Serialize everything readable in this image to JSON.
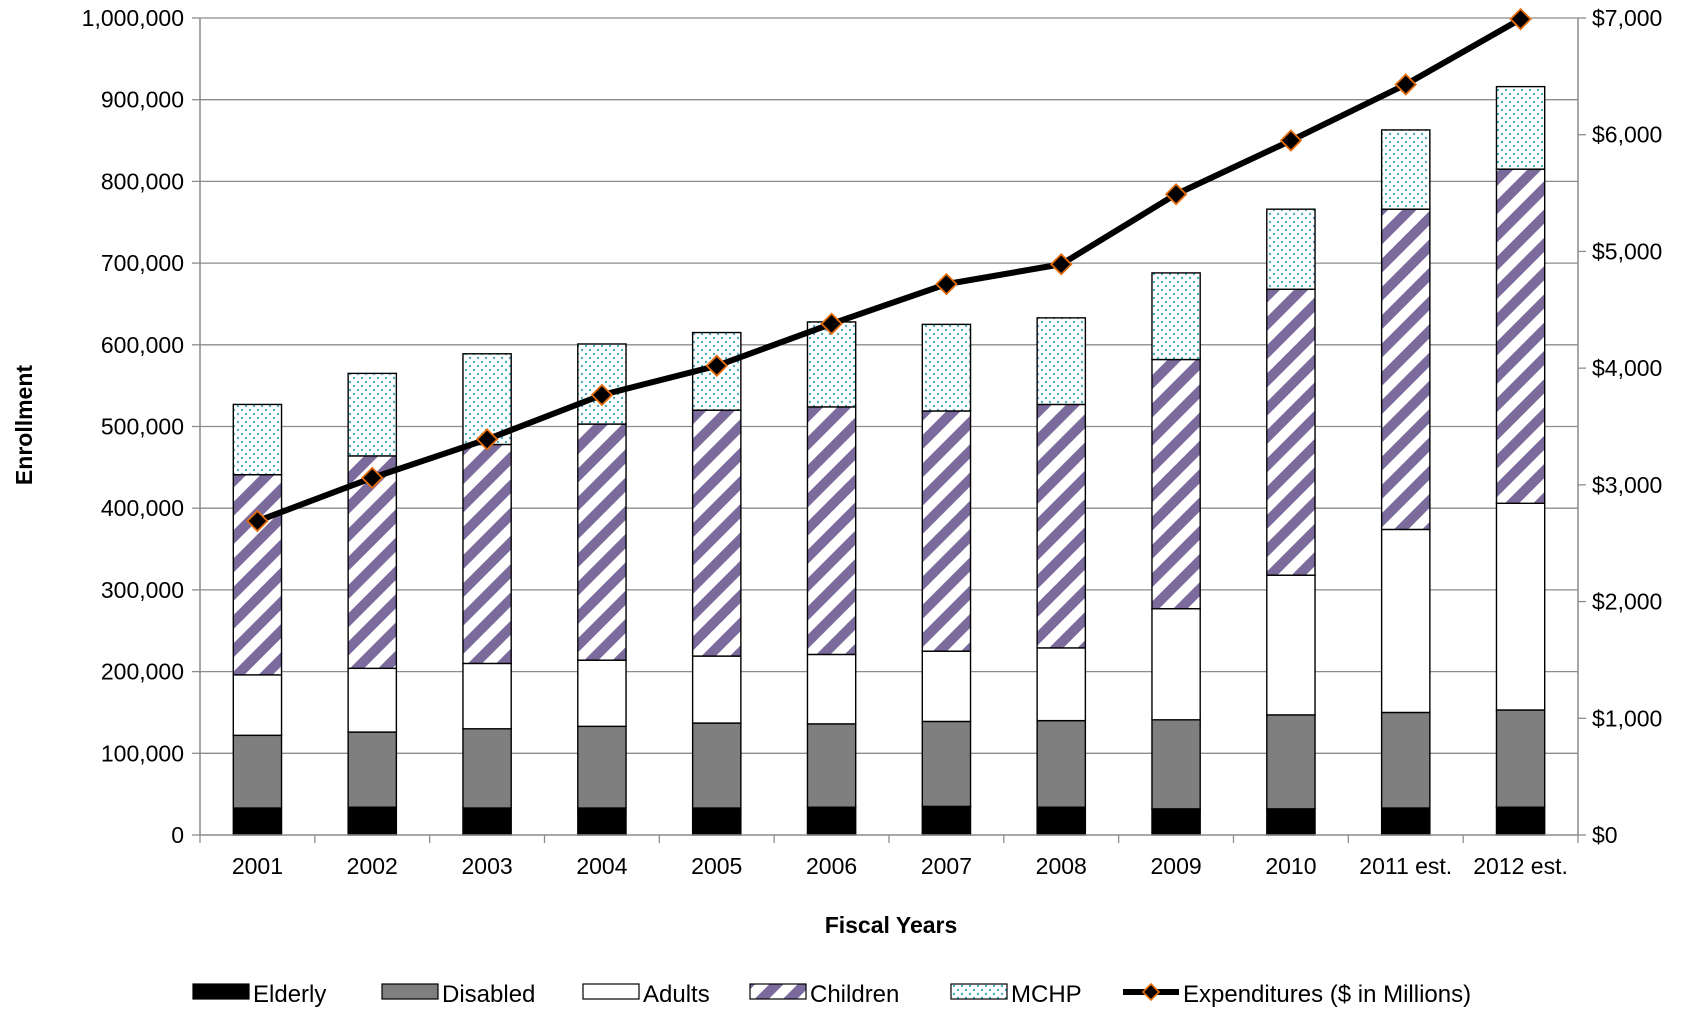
{
  "chart_data": {
    "type": "bar",
    "stacked": true,
    "title": "",
    "xlabel": "Fiscal Years",
    "ylabel": "Enrollment",
    "y2label": "",
    "categories": [
      "2001",
      "2002",
      "2003",
      "2004",
      "2005",
      "2006",
      "2007",
      "2008",
      "2009",
      "2010",
      "2011 est.",
      "2012 est."
    ],
    "ylim": [
      0,
      1000000
    ],
    "y2lim": [
      0,
      7000
    ],
    "y_ticks": [
      "0",
      "100,000",
      "200,000",
      "300,000",
      "400,000",
      "500,000",
      "600,000",
      "700,000",
      "800,000",
      "900,000",
      "1,000,000"
    ],
    "y2_ticks": [
      "$0",
      "$1,000",
      "$2,000",
      "$3,000",
      "$4,000",
      "$5,000",
      "$6,000",
      "$7,000"
    ],
    "grid": "horizontal",
    "legend_position": "bottom",
    "series": [
      {
        "name": "Elderly",
        "type": "bar",
        "color": "#000000",
        "pattern": "solid",
        "values": [
          33000,
          34000,
          33000,
          33000,
          33000,
          34000,
          35000,
          34000,
          32000,
          32000,
          33000,
          34000
        ]
      },
      {
        "name": "Disabled",
        "type": "bar",
        "color": "#7f7f7f",
        "pattern": "solid",
        "values": [
          89000,
          92000,
          97000,
          100000,
          104000,
          102000,
          104000,
          106000,
          109000,
          115000,
          117000,
          119000
        ]
      },
      {
        "name": "Adults",
        "type": "bar",
        "color": "#ffffff",
        "pattern": "solid",
        "values": [
          74000,
          78000,
          80000,
          81000,
          82000,
          85000,
          86000,
          89000,
          136000,
          171000,
          224000,
          253000
        ]
      },
      {
        "name": "Children",
        "type": "bar",
        "color": "#7b6a9c",
        "pattern": "diagonal",
        "values": [
          245000,
          260000,
          268000,
          289000,
          301000,
          303000,
          294000,
          298000,
          305000,
          350000,
          392000,
          409000
        ]
      },
      {
        "name": "MCHP",
        "type": "bar",
        "color": "#4bacc6",
        "pattern": "dots",
        "values": [
          86000,
          101000,
          111000,
          98000,
          95000,
          104000,
          106000,
          106000,
          106000,
          98000,
          97000,
          101000
        ]
      },
      {
        "name": "Expenditures ($ in Millions)",
        "type": "line",
        "axis": "right",
        "color": "#000000",
        "marker_color": "#e46c0a",
        "values": [
          2690,
          3060,
          3390,
          3770,
          4020,
          4380,
          4720,
          4890,
          5490,
          5950,
          6430,
          6990
        ]
      }
    ]
  }
}
